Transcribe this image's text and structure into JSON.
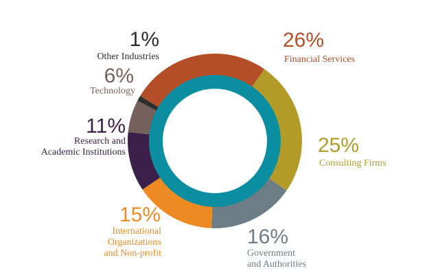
{
  "chart_data": {
    "type": "pie",
    "title": "",
    "style": "donut",
    "inner_ring_color": "#0a8ea0",
    "slices": [
      {
        "label": "Financial Services",
        "label_lines": [
          "Financial Services"
        ],
        "value": 26,
        "value_label": "26%",
        "color": "#b34e28"
      },
      {
        "label": "Consulting Firms",
        "label_lines": [
          "Consulting Firms"
        ],
        "value": 25,
        "value_label": "25%",
        "color": "#b39b2a"
      },
      {
        "label": "Government and Authorities",
        "label_lines": [
          "Government",
          "and Authorities"
        ],
        "value": 16,
        "value_label": "16%",
        "color": "#6c7d86"
      },
      {
        "label": "International Organizations and Non-profit",
        "label_lines": [
          "International",
          "Organizations",
          "and Non-profit"
        ],
        "value": 15,
        "value_label": "15%",
        "color": "#ee8a22"
      },
      {
        "label": "Research and Academic Institutions",
        "label_lines": [
          "Research and",
          "Academic Institutions"
        ],
        "value": 11,
        "value_label": "11%",
        "color": "#3b2049"
      },
      {
        "label": "Technology",
        "label_lines": [
          "Technology"
        ],
        "value": 6,
        "value_label": "6%",
        "color": "#75605d"
      },
      {
        "label": "Other Industries",
        "label_lines": [
          "Other Industries"
        ],
        "value": 1,
        "value_label": "1%",
        "color": "#2e2e2e"
      }
    ]
  }
}
